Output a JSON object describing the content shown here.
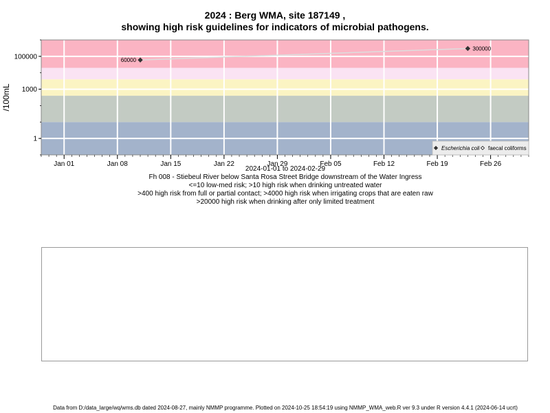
{
  "chart_data": {
    "type": "scatter",
    "title": "2024 : Berg WMA, site 187149 ,",
    "subtitle": "showing high risk guidelines for indicators of microbial pathogens.",
    "ylabel": "/100mL",
    "yscale": "log",
    "x_range": [
      "2023-12-29",
      "2024-03-02"
    ],
    "y_range": [
      0.1,
      1000000
    ],
    "y_ticks": [
      {
        "value": 1,
        "label": "1"
      },
      {
        "value": 1000,
        "label": "1000"
      },
      {
        "value": 100000,
        "label": "100000"
      }
    ],
    "x_ticks": [
      {
        "date": "2024-01-01",
        "label": "Jan 01"
      },
      {
        "date": "2024-01-08",
        "label": "Jan 08"
      },
      {
        "date": "2024-01-15",
        "label": "Jan 15"
      },
      {
        "date": "2024-01-22",
        "label": "Jan 22"
      },
      {
        "date": "2024-01-29",
        "label": "Jan 29"
      },
      {
        "date": "2024-02-05",
        "label": "Feb 05"
      },
      {
        "date": "2024-02-12",
        "label": "Feb 12"
      },
      {
        "date": "2024-02-19",
        "label": "Feb 19"
      },
      {
        "date": "2024-02-26",
        "label": "Feb 26"
      }
    ],
    "bands": [
      {
        "from": 0.1,
        "to": 10,
        "color": "#a3b3cb"
      },
      {
        "from": 10,
        "to": 400,
        "color": "#c3cbc3"
      },
      {
        "from": 400,
        "to": 4000,
        "color": "#fbf4c3"
      },
      {
        "from": 4000,
        "to": 20000,
        "color": "#fae3f3"
      },
      {
        "from": 20000,
        "to": 1000000,
        "color": "#fbb4c3"
      }
    ],
    "series": [
      {
        "name": "Escherichia coli",
        "marker": "filled-diamond",
        "color": "#333333",
        "points": [
          {
            "date": "2024-01-11",
            "value": 60000,
            "label": "60000"
          },
          {
            "date": "2024-02-23",
            "value": 300000,
            "label": "300000"
          }
        ]
      },
      {
        "name": "faecal coliforms",
        "marker": "open-diamond",
        "color": "#333333",
        "points": []
      }
    ],
    "legend": "bottom-right",
    "grid": true
  },
  "captions": {
    "date_range": "2024-01-01 to 2024-02-29",
    "site": "Fh 008 - Stiebeul River below Santa Rosa Street Bridge downstream of the Water Ingress",
    "guide1": "<=10 low-med risk; >10 high risk when drinking untreated water",
    "guide2": ">400 high risk from full or partial contact; >4000 high risk when irrigating crops that are eaten raw",
    "guide3": ">20000 high risk when drinking after only limited treatment"
  },
  "footer": "Data from D:/data_large/wq/wms.db dated 2024-08-27, mainly NMMP programme. Plotted on 2024-10-25 18:54:19 using NMMP_WMA_web.R ver 9.3 under R version 4.4.1 (2024-06-14 ucrt)"
}
